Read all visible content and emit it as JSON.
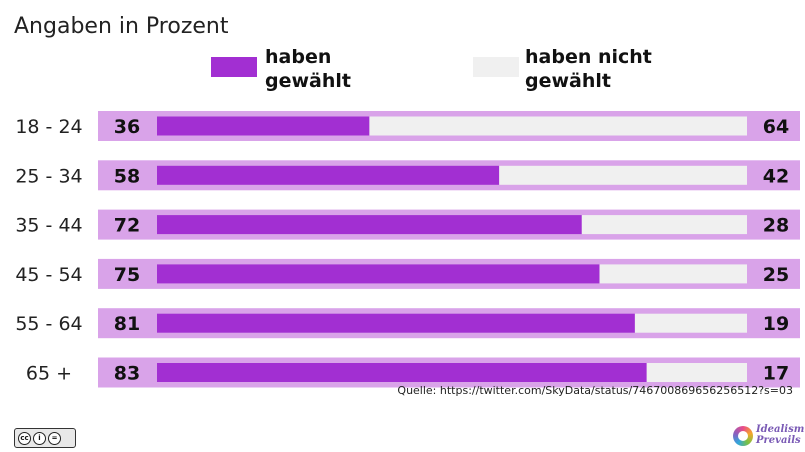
{
  "subtitle": "Angaben in Prozent",
  "legend": [
    {
      "label": "haben\ngewählt",
      "color": "#a22fd2"
    },
    {
      "label": "haben nicht\ngewählt",
      "color": "#f0f0f0"
    }
  ],
  "chart_data": {
    "type": "bar",
    "stacked": true,
    "orientation": "horizontal",
    "categories": [
      "18 - 24",
      "25 - 34",
      "35 - 44",
      "45 - 54",
      "55 - 64",
      "65 +"
    ],
    "series": [
      {
        "name": "haben gewählt",
        "values": [
          36,
          58,
          72,
          75,
          81,
          83
        ],
        "color": "#a22fd2"
      },
      {
        "name": "haben nicht gewählt",
        "values": [
          64,
          42,
          28,
          25,
          19,
          17
        ],
        "color": "#f0f0f0"
      }
    ],
    "row_background": "#d9a3e9",
    "xlim": [
      0,
      100
    ],
    "legend_position": "top"
  },
  "source": "Quelle: https://twitter.com/SkyData/status/746700869656256512?s=03",
  "license": {
    "badge": "cc-by-nd-icon",
    "marks": [
      "cc",
      "i",
      "="
    ]
  },
  "brand": {
    "name": "Idealism Prevails"
  }
}
